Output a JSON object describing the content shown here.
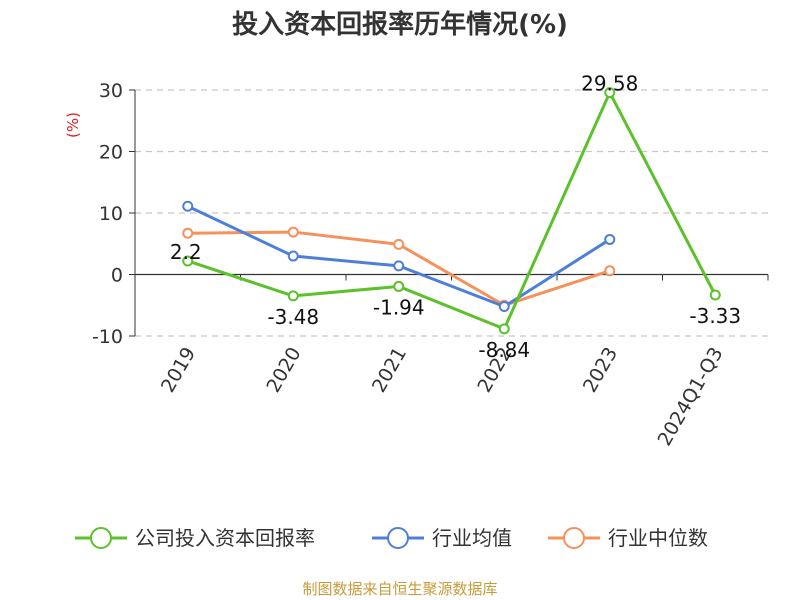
{
  "chart_data": {
    "type": "line",
    "title": "投入资本回报率历年情况(%)",
    "ylabel": "(%)",
    "categories": [
      "2019",
      "2020",
      "2021",
      "2022",
      "2023",
      "2024Q1-Q3"
    ],
    "yticks": [
      30,
      20,
      10,
      0,
      -10
    ],
    "ylim": [
      -10,
      30
    ],
    "grid": true,
    "legend": "bottom",
    "series": [
      {
        "name": "公司投入资本回报率",
        "color": "#5cc12b",
        "values": [
          2.2,
          -3.48,
          -1.94,
          -8.84,
          29.58,
          -3.33
        ],
        "labels": [
          "2.2",
          "-3.48",
          "-1.94",
          "-8.84",
          "29.58",
          "-3.33"
        ]
      },
      {
        "name": "行业均值",
        "color": "#4e7fd8",
        "values": [
          11.1,
          3.0,
          1.4,
          -5.2,
          5.7,
          null
        ]
      },
      {
        "name": "行业中位数",
        "color": "#f5915a",
        "values": [
          6.7,
          6.9,
          4.9,
          -5.0,
          0.6,
          null
        ]
      }
    ]
  },
  "source": "制图数据来自恒生聚源数据库"
}
